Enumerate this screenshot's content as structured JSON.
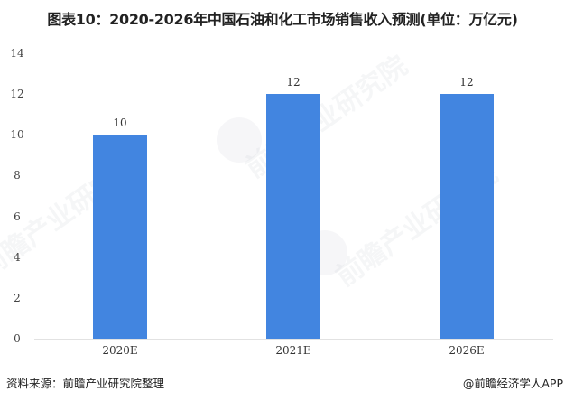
{
  "title": "图表10：2020-2026年中国石油和化工市场销售收入预测(单位：万亿元)",
  "colors": {
    "bar": "#4285e0",
    "baseline": "#e2e2e2",
    "text": "#333333"
  },
  "chart_data": {
    "type": "bar",
    "title": "图表10：2020-2026年中国石油和化工市场销售收入预测(单位：万亿元)",
    "categories": [
      "2020E",
      "2021E",
      "2026E"
    ],
    "values": [
      10,
      12,
      12
    ],
    "data_labels": [
      "10",
      "12",
      "12"
    ],
    "xlabel": "",
    "ylabel": "",
    "ylim": [
      0,
      14
    ],
    "yticks": [
      0,
      2,
      4,
      6,
      8,
      10,
      12,
      14
    ],
    "ytick_labels": [
      "0",
      "2",
      "4",
      "6",
      "8",
      "10",
      "12",
      "14"
    ],
    "grid": false,
    "legend": null,
    "unit": "万亿元"
  },
  "watermark": {
    "text": "前瞻产业研究院"
  },
  "footer": {
    "source": "资料来源：前瞻产业研究院整理",
    "credit": "@前瞻经济学人APP"
  }
}
